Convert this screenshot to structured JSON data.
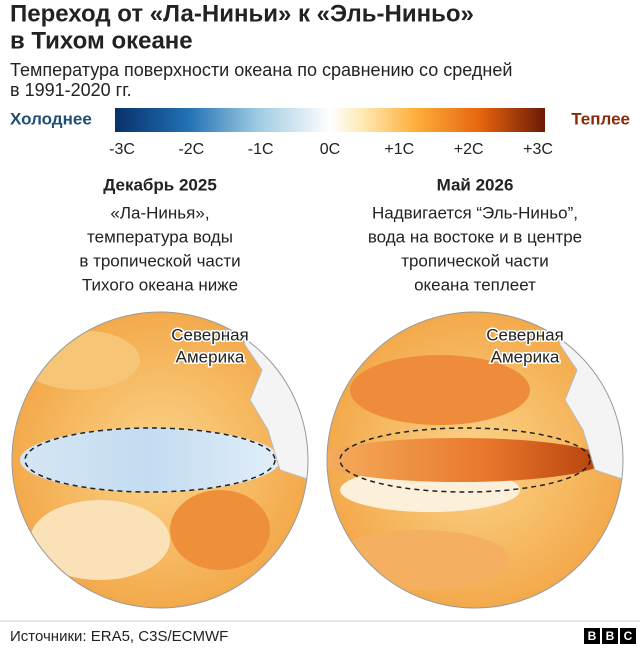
{
  "header": {
    "title": [
      "Переход от «Ла-Ниньи» к «Эль-Ниньо»",
      "в Тихом океане"
    ],
    "subtitle": [
      "Температура поверхности океана по сравнению со средней",
      "в 1991-2020 гг."
    ]
  },
  "scale": {
    "cold_label": "Холоднее",
    "warm_label": "Теплее",
    "ticks": [
      "-3C",
      "-2C",
      "-1C",
      "0C",
      "+1C",
      "+2C",
      "+3C"
    ]
  },
  "panels": [
    {
      "heading": "Декабрь 2025",
      "caption": [
        "«Ла-Нинья»,",
        "температура воды",
        "в тропической части",
        "Тихого океана ниже"
      ],
      "map_label": [
        "Северная",
        "Америка"
      ]
    },
    {
      "heading": "Май 2026",
      "caption": [
        "Надвигается “Эль-Ниньо”,",
        "вода на востоке и в центре",
        "тропической части",
        "океана теплеет"
      ],
      "map_label": [
        "Северная",
        "Америка"
      ]
    }
  ],
  "footer": {
    "source": "Источники: ERA5, C3S/ECMWF",
    "logo": [
      "B",
      "B",
      "C"
    ]
  }
}
